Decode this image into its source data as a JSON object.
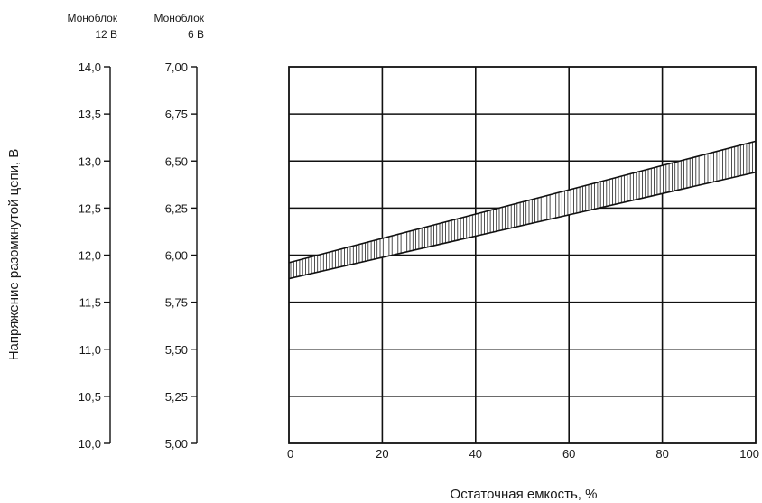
{
  "chart_data": {
    "type": "area",
    "xlabel": "Остаточная емкость, %",
    "ylabel": "Напряжение разомкнутой цепи, В",
    "x_ticks": [
      "0",
      "20",
      "40",
      "60",
      "80",
      "100"
    ],
    "xlim": [
      0,
      100
    ],
    "grid": true,
    "y_axes": [
      {
        "name": "Моноблок 12 В",
        "header_line1": "Моноблок",
        "header_line2": "12 В",
        "ylim": [
          10.0,
          14.0
        ],
        "ticks": [
          "14,0",
          "13,5",
          "13,0",
          "12,5",
          "12,0",
          "11,5",
          "11,0",
          "10,5",
          "10,0"
        ]
      },
      {
        "name": "Моноблок 6 В",
        "header_line1": "Моноблок",
        "header_line2": "6 В",
        "ylim": [
          5.0,
          7.0
        ],
        "ticks": [
          "7,00",
          "6,75",
          "6,50",
          "6,25",
          "6,00",
          "5,75",
          "5,50",
          "5,25",
          "5,00"
        ]
      }
    ],
    "band": {
      "axis": "Моноблок 12 В",
      "x": [
        0,
        100
      ],
      "upper": [
        11.92,
        13.21
      ],
      "lower": [
        11.75,
        12.88
      ],
      "fill": "vertical-hatch"
    }
  }
}
